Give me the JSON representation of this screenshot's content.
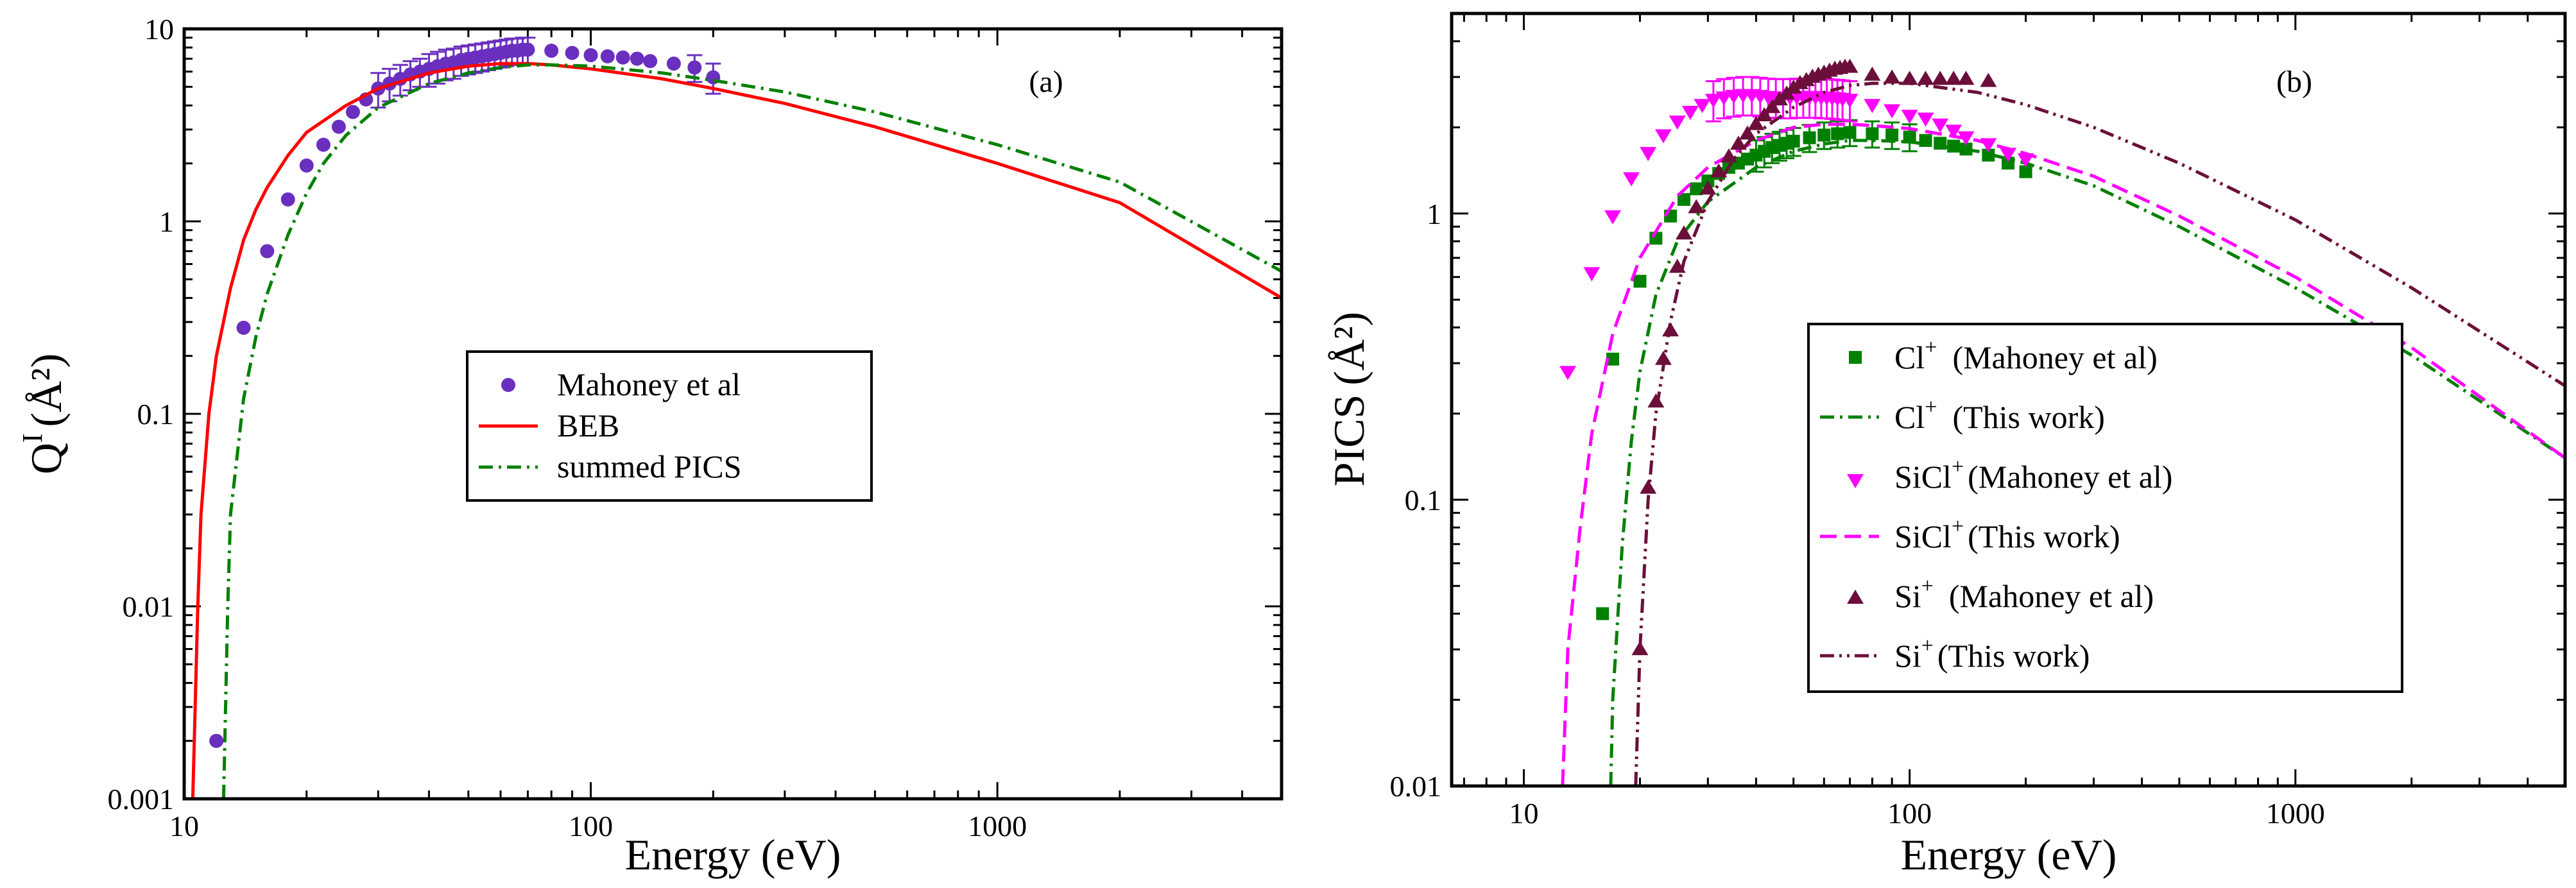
{
  "chart_data": [
    {
      "type": "line",
      "panel_label": "(a)",
      "xlabel": "Energy (eV)",
      "ylabel_main": "Q",
      "ylabel_sup": "I",
      "ylabel_unit": "(Å²)",
      "xscale": "log",
      "yscale": "log",
      "xlim": [
        10,
        5000
      ],
      "ylim": [
        0.001,
        10
      ],
      "xticks": [
        10,
        100,
        1000
      ],
      "xtick_labels": [
        "10",
        "100",
        "1000"
      ],
      "yticks": [
        0.001,
        0.01,
        0.1,
        1,
        10
      ],
      "ytick_labels": [
        "0.001",
        "0.01",
        "0.1",
        "1",
        "10"
      ],
      "legend_position": "center",
      "series": [
        {
          "name": "Mahoney et al",
          "kind": "scatter",
          "marker": "circle",
          "color": "#6a2fbf",
          "x": [
            12,
            14,
            16,
            18,
            20,
            22,
            24,
            26,
            28,
            30,
            32,
            34,
            36,
            38,
            40,
            42,
            44,
            46,
            48,
            50,
            52,
            54,
            56,
            58,
            60,
            62,
            64,
            66,
            68,
            70,
            80,
            90,
            100,
            110,
            120,
            130,
            140,
            160,
            180,
            200
          ],
          "y": [
            0.002,
            0.28,
            0.7,
            1.3,
            1.95,
            2.5,
            3.1,
            3.7,
            4.3,
            4.9,
            5.2,
            5.5,
            5.8,
            6.0,
            6.2,
            6.4,
            6.6,
            6.7,
            6.9,
            7.0,
            7.1,
            7.2,
            7.3,
            7.4,
            7.5,
            7.6,
            7.7,
            7.7,
            7.8,
            7.8,
            7.7,
            7.5,
            7.3,
            7.2,
            7.1,
            7.0,
            6.8,
            6.6,
            6.3,
            5.6
          ],
          "errors": [
            0,
            0,
            0,
            0,
            0,
            0,
            0,
            0,
            0,
            1.0,
            1.0,
            1.0,
            1.0,
            1.0,
            1.2,
            1.2,
            1.2,
            1.2,
            1.2,
            1.2,
            1.2,
            1.2,
            1.2,
            1.2,
            1.2,
            1.2,
            1.2,
            1.2,
            1.2,
            1.2,
            0,
            0,
            0,
            0,
            0,
            0,
            0,
            0,
            1.0,
            1.0
          ]
        },
        {
          "name": "BEB",
          "kind": "line",
          "dash": "solid",
          "color": "#ff0000",
          "x": [
            10.5,
            10.8,
            11,
            11.5,
            12,
            13,
            14,
            15,
            16,
            18,
            20,
            25,
            30,
            40,
            50,
            60,
            70,
            80,
            100,
            150,
            200,
            300,
            500,
            1000,
            2000,
            5000
          ],
          "y": [
            0.001,
            0.01,
            0.03,
            0.1,
            0.2,
            0.45,
            0.8,
            1.15,
            1.5,
            2.2,
            2.9,
            4.0,
            4.9,
            5.9,
            6.4,
            6.6,
            6.6,
            6.5,
            6.2,
            5.5,
            4.9,
            4.1,
            3.1,
            2.0,
            1.25,
            0.4
          ]
        },
        {
          "name": "summed PICS",
          "kind": "line",
          "dash": "dashdot",
          "color": "#008000",
          "x": [
            12.5,
            12.8,
            13,
            14,
            15,
            16,
            18,
            20,
            22,
            25,
            30,
            40,
            50,
            60,
            70,
            80,
            100,
            150,
            200,
            300,
            500,
            1000,
            2000,
            5000
          ],
          "y": [
            0.001,
            0.01,
            0.03,
            0.12,
            0.25,
            0.42,
            0.85,
            1.4,
            2.0,
            2.8,
            3.9,
            5.2,
            5.9,
            6.3,
            6.5,
            6.5,
            6.4,
            5.9,
            5.4,
            4.7,
            3.7,
            2.5,
            1.6,
            0.55
          ]
        }
      ]
    },
    {
      "type": "line",
      "panel_label": "(b)",
      "xlabel": "Energy (eV)",
      "ylabel_main": "PICS",
      "ylabel_unit": "(Å²)",
      "xscale": "log",
      "yscale": "log",
      "xlim": [
        6.5,
        5000
      ],
      "ylim": [
        0.01,
        5
      ],
      "xticks": [
        10,
        100,
        1000
      ],
      "xtick_labels": [
        "10",
        "100",
        "1000"
      ],
      "yticks": [
        0.01,
        0.1,
        1
      ],
      "ytick_labels": [
        "0.01",
        "0.1",
        "1"
      ],
      "legend_position": "center-right",
      "series": [
        {
          "name": "(Mahoney et al)",
          "ion": "Cl",
          "kind": "scatter",
          "marker": "square",
          "color": "#008000",
          "x": [
            16,
            17,
            20,
            22,
            24,
            26,
            28,
            30,
            32,
            34,
            36,
            38,
            40,
            42,
            44,
            46,
            48,
            50,
            55,
            60,
            65,
            70,
            80,
            90,
            100,
            110,
            120,
            130,
            140,
            160,
            180,
            200
          ],
          "y": [
            0.04,
            0.31,
            0.58,
            0.82,
            0.98,
            1.12,
            1.22,
            1.3,
            1.38,
            1.45,
            1.5,
            1.55,
            1.6,
            1.65,
            1.7,
            1.73,
            1.76,
            1.79,
            1.84,
            1.88,
            1.9,
            1.92,
            1.9,
            1.88,
            1.85,
            1.8,
            1.76,
            1.72,
            1.68,
            1.6,
            1.5,
            1.4
          ],
          "errors": [
            0,
            0,
            0,
            0,
            0,
            0,
            0,
            0,
            0,
            0,
            0,
            0,
            0.2,
            0.2,
            0.2,
            0.2,
            0.2,
            0.2,
            0.2,
            0.2,
            0.2,
            0.2,
            0.2,
            0.2,
            0.2,
            0,
            0,
            0,
            0,
            0,
            0,
            0
          ]
        },
        {
          "name": "(This work)",
          "ion": "Cl",
          "kind": "line",
          "dash": "dashdot",
          "color": "#008000",
          "x": [
            16.8,
            17,
            18,
            19,
            20,
            22,
            25,
            30,
            40,
            50,
            60,
            70,
            80,
            100,
            150,
            200,
            300,
            500,
            1000,
            2000,
            5000
          ],
          "y": [
            0.01,
            0.02,
            0.07,
            0.16,
            0.28,
            0.52,
            0.8,
            1.1,
            1.45,
            1.65,
            1.75,
            1.8,
            1.8,
            1.78,
            1.65,
            1.5,
            1.25,
            0.9,
            0.55,
            0.32,
            0.14
          ]
        },
        {
          "name": "(Mahoney et al)",
          "ion": "SiCl",
          "kind": "scatter",
          "marker": "triangle-down",
          "color": "#ff00ff",
          "x": [
            13,
            15,
            17,
            19,
            21,
            23,
            25,
            27,
            29,
            31,
            33,
            35,
            37,
            39,
            41,
            43,
            45,
            47,
            49,
            51,
            53,
            55,
            57,
            59,
            61,
            63,
            65,
            67,
            70,
            80,
            90,
            100,
            110,
            120,
            130,
            140,
            160,
            180,
            200
          ],
          "y": [
            0.28,
            0.62,
            0.98,
            1.33,
            1.63,
            1.88,
            2.1,
            2.27,
            2.4,
            2.5,
            2.55,
            2.58,
            2.6,
            2.6,
            2.58,
            2.56,
            2.55,
            2.55,
            2.55,
            2.56,
            2.56,
            2.56,
            2.56,
            2.55,
            2.55,
            2.54,
            2.53,
            2.52,
            2.5,
            2.4,
            2.3,
            2.2,
            2.15,
            2.05,
            1.95,
            1.85,
            1.75,
            1.62,
            1.55
          ],
          "errors": [
            0,
            0,
            0,
            0,
            0,
            0,
            0,
            0,
            0,
            0.4,
            0.4,
            0.4,
            0.4,
            0.4,
            0.4,
            0.4,
            0.4,
            0.4,
            0.4,
            0.4,
            0.4,
            0.4,
            0.4,
            0.4,
            0.4,
            0.4,
            0.4,
            0.4,
            0.4,
            0,
            0,
            0,
            0,
            0,
            0,
            0,
            0,
            0,
            0
          ]
        },
        {
          "name": "(This work)",
          "ion": "SiCl",
          "kind": "line",
          "dash": "dashed",
          "color": "#ff00ff",
          "x": [
            12.6,
            13,
            14,
            15,
            17,
            20,
            25,
            30,
            40,
            50,
            60,
            70,
            80,
            100,
            150,
            200,
            300,
            500,
            1000,
            2000,
            5000
          ],
          "y": [
            0.01,
            0.03,
            0.08,
            0.17,
            0.38,
            0.7,
            1.15,
            1.45,
            1.8,
            2.0,
            2.05,
            2.05,
            2.03,
            1.98,
            1.8,
            1.62,
            1.35,
            0.98,
            0.6,
            0.34,
            0.14
          ]
        },
        {
          "name": "(Mahoney et al)",
          "ion": "Si",
          "kind": "scatter",
          "marker": "triangle-up",
          "color": "#6b0f3a",
          "x": [
            20,
            21,
            22,
            23,
            24,
            25,
            26,
            28,
            30,
            32,
            34,
            36,
            38,
            40,
            42,
            44,
            46,
            48,
            50,
            52,
            54,
            56,
            58,
            60,
            62,
            64,
            66,
            68,
            70,
            80,
            90,
            100,
            110,
            120,
            130,
            140,
            160
          ],
          "y": [
            0.03,
            0.11,
            0.22,
            0.31,
            0.39,
            0.65,
            0.85,
            1.05,
            1.22,
            1.4,
            1.58,
            1.75,
            1.9,
            2.05,
            2.2,
            2.35,
            2.5,
            2.62,
            2.75,
            2.85,
            2.92,
            3.0,
            3.05,
            3.1,
            3.15,
            3.2,
            3.22,
            3.25,
            3.25,
            3.05,
            2.98,
            2.95,
            2.95,
            2.95,
            2.95,
            2.95,
            2.9
          ]
        },
        {
          "name": "(This work)",
          "ion": "Si",
          "kind": "line",
          "dash": "dashdotdot",
          "color": "#6b0f3a",
          "x": [
            19.5,
            20,
            21,
            22,
            24,
            26,
            30,
            35,
            40,
            50,
            60,
            70,
            80,
            100,
            150,
            200,
            300,
            500,
            1000,
            2000,
            5000
          ],
          "y": [
            0.01,
            0.03,
            0.1,
            0.2,
            0.42,
            0.68,
            1.1,
            1.55,
            1.9,
            2.35,
            2.65,
            2.8,
            2.85,
            2.85,
            2.65,
            2.4,
            2.0,
            1.5,
            0.95,
            0.55,
            0.25
          ]
        }
      ]
    }
  ]
}
